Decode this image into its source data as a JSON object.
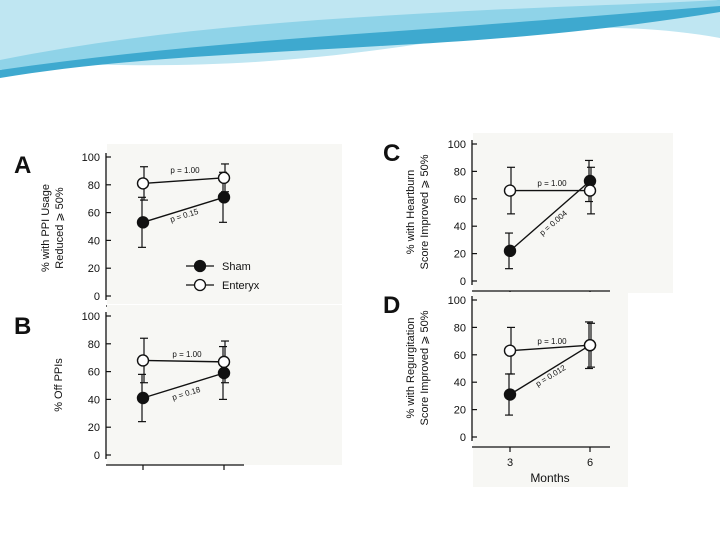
{
  "slide": {
    "colors": {
      "wave_dark": "#3ea9cf",
      "wave_light": "#bfe6f2",
      "plot_bg": "#f7f7f4"
    }
  },
  "legend": {
    "sham": "Sham",
    "enteryx": "Enteryx"
  },
  "chart_data": [
    {
      "type": "line",
      "panel": "A",
      "ylabel": [
        "% with PPI Usage",
        "Reduced ⩾ 50%"
      ],
      "x": [
        3,
        6
      ],
      "ylim": [
        0,
        100
      ],
      "yticks": [
        0,
        20,
        40,
        60,
        80,
        100
      ],
      "series": [
        {
          "name": "Sham",
          "marker": "filled",
          "values": [
            53,
            71
          ],
          "errors": [
            18,
            18
          ]
        },
        {
          "name": "Enteryx",
          "marker": "open",
          "values": [
            81,
            85
          ],
          "errors": [
            12,
            10
          ]
        }
      ],
      "annotations": [
        "p = 1.00",
        "p = 0.15"
      ]
    },
    {
      "type": "line",
      "panel": "B",
      "ylabel": [
        "% Off PPIs"
      ],
      "x": [
        3,
        6
      ],
      "ylim": [
        0,
        100
      ],
      "yticks": [
        0,
        20,
        40,
        60,
        80,
        100
      ],
      "series": [
        {
          "name": "Sham",
          "marker": "filled",
          "values": [
            41,
            59
          ],
          "errors": [
            17,
            19
          ]
        },
        {
          "name": "Enteryx",
          "marker": "open",
          "values": [
            68,
            67
          ],
          "errors": [
            16,
            15
          ]
        }
      ],
      "annotations": [
        "p = 1.00",
        "p = 0.18"
      ]
    },
    {
      "type": "line",
      "panel": "C",
      "ylabel": [
        "% with Heartburn",
        "Score Improved ⩾ 50%"
      ],
      "x": [
        3,
        6
      ],
      "ylim": [
        0,
        100
      ],
      "yticks": [
        0,
        20,
        40,
        60,
        80,
        100
      ],
      "series": [
        {
          "name": "Sham",
          "marker": "filled",
          "values": [
            22,
            73
          ],
          "errors": [
            13,
            15
          ]
        },
        {
          "name": "Enteryx",
          "marker": "open",
          "values": [
            66,
            66
          ],
          "errors": [
            17,
            17
          ]
        }
      ],
      "annotations": [
        "p = 1.00",
        "p = 0.004"
      ]
    },
    {
      "type": "line",
      "panel": "D",
      "ylabel": [
        "% with Regurgitation",
        "Score Improved ⩾ 50%"
      ],
      "x": [
        3,
        6
      ],
      "xticks": [
        "3",
        "6"
      ],
      "xlabel": "Months",
      "ylim": [
        0,
        100
      ],
      "yticks": [
        0,
        20,
        40,
        60,
        80,
        100
      ],
      "series": [
        {
          "name": "Sham",
          "marker": "filled",
          "values": [
            31,
            67
          ],
          "errors": [
            15,
            17
          ]
        },
        {
          "name": "Enteryx",
          "marker": "open",
          "values": [
            63,
            67
          ],
          "errors": [
            17,
            16
          ]
        }
      ],
      "annotations": [
        "p = 1.00",
        "p = 0.012"
      ]
    }
  ]
}
